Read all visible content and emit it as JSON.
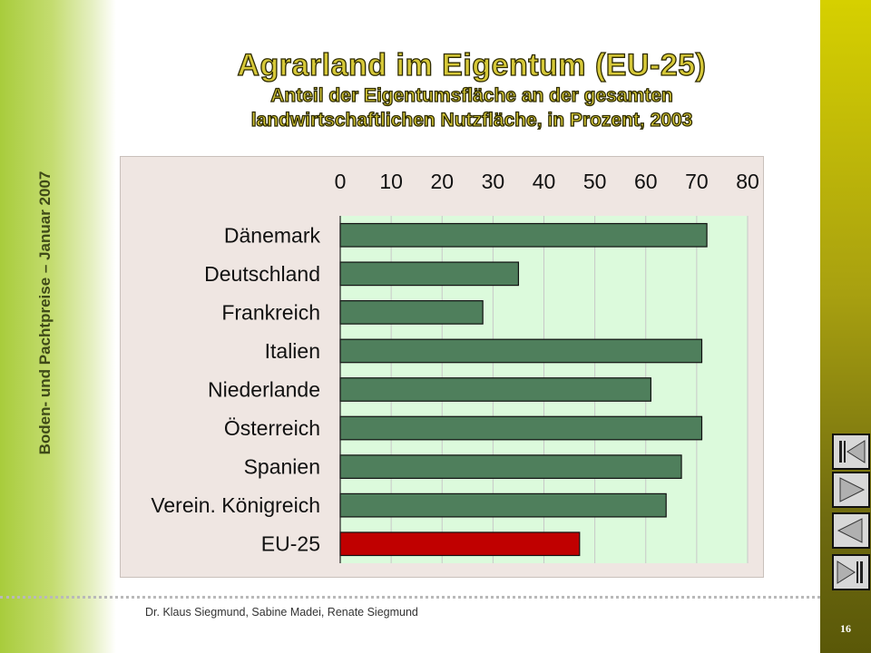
{
  "sidebar": {
    "vertical_text": "Boden- und Pachtpreise – Januar 2007"
  },
  "title": {
    "main": "Agrarland im Eigentum (EU-25)",
    "sub_line1": "Anteil der Eigentumsfläche an der gesamten",
    "sub_line2": "landwirtschaftlichen Nutzfläche, in Prozent, 2003"
  },
  "chart_data": {
    "type": "bar",
    "orientation": "horizontal",
    "categories": [
      "Dänemark",
      "Deutschland",
      "Frankreich",
      "Italien",
      "Niederlande",
      "Österreich",
      "Spanien",
      "Verein. Königreich",
      "EU-25"
    ],
    "values": [
      72,
      35,
      28,
      71,
      61,
      71,
      67,
      64,
      47
    ],
    "xlim": [
      0,
      80
    ],
    "x_ticks": [
      "0",
      "10",
      "20",
      "30",
      "40",
      "50",
      "60",
      "70",
      "80"
    ],
    "x_axis_position": "top",
    "grid": true,
    "colors": {
      "bar": "#4f7f5c",
      "highlight_bar": "#c00000",
      "plot_background": "#dcfadc",
      "highlight_category": "EU-25"
    }
  },
  "footer": {
    "authors": "Dr. Klaus Siegmund, Sabine Madei, Renate Siegmund",
    "page_number": "16"
  },
  "nav": [
    {
      "name": "first-slide-button",
      "icon": "first-icon"
    },
    {
      "name": "next-slide-button",
      "icon": "next-icon"
    },
    {
      "name": "previous-slide-button",
      "icon": "previous-icon"
    },
    {
      "name": "last-slide-button",
      "icon": "last-icon"
    }
  ]
}
